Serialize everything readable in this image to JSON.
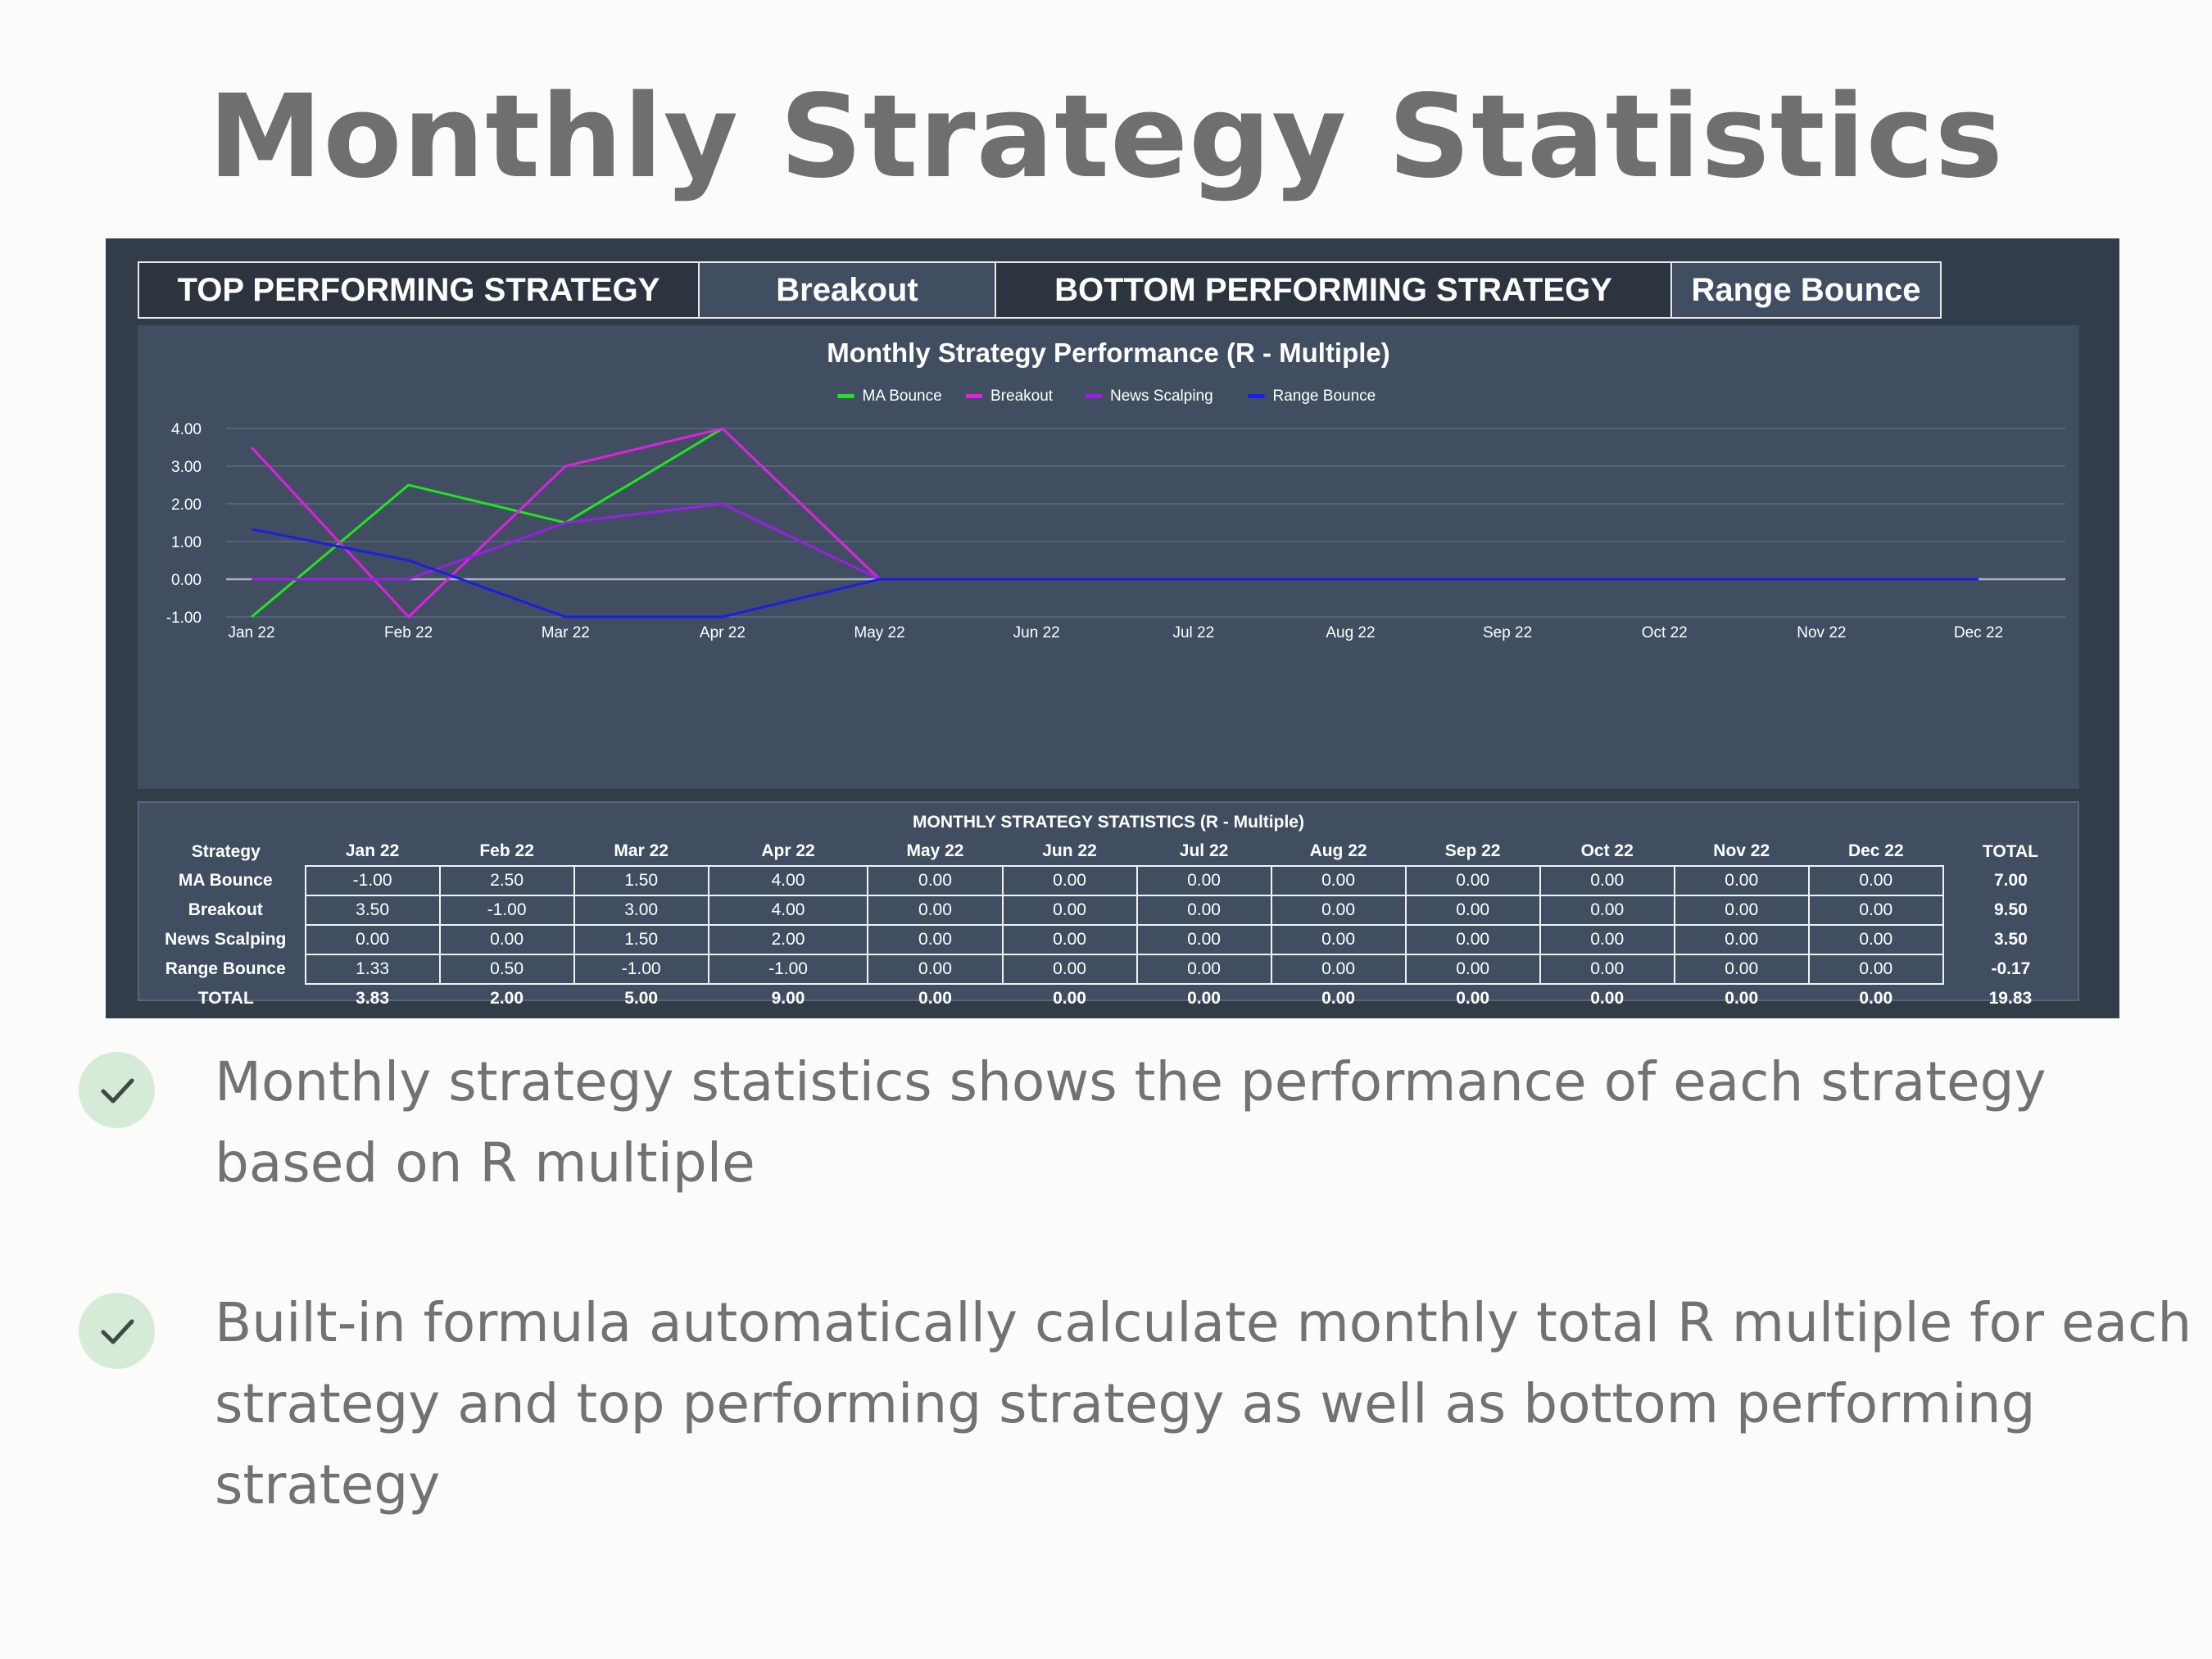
{
  "page": {
    "title": "Monthly Strategy Statistics"
  },
  "kpi": {
    "top_label": "TOP PERFORMING STRATEGY",
    "top_value": "Breakout",
    "bottom_label": "BOTTOM PERFORMING STRATEGY",
    "bottom_value": "Range Bounce"
  },
  "colors": {
    "background": "#fbfcfa",
    "panel_dark": "#333d4a",
    "panel": "#414e61",
    "title_gray": "#6f6f6f",
    "check_bg": "#d5ebd7",
    "check_mark": "#3f4a44"
  },
  "chart_data": {
    "type": "line",
    "title": "Monthly Strategy Performance (R - Multiple)",
    "xlabel": "",
    "ylabel": "",
    "categories": [
      "Jan 22",
      "Feb 22",
      "Mar 22",
      "Apr 22",
      "May 22",
      "Jun 22",
      "Jul 22",
      "Aug 22",
      "Sep 22",
      "Oct 22",
      "Nov 22",
      "Dec 22"
    ],
    "ylim": [
      -1,
      4
    ],
    "yticks": [
      "4.00",
      "3.00",
      "2.00",
      "1.00",
      "0.00",
      "-1.00"
    ],
    "grid": true,
    "legend_position": "top-center",
    "series": [
      {
        "name": "MA Bounce",
        "color": "#1ee61e",
        "values": [
          -1.0,
          2.5,
          1.5,
          4.0,
          0,
          0,
          0,
          0,
          0,
          0,
          0,
          0
        ]
      },
      {
        "name": "Breakout",
        "color": "#e21ee2",
        "values": [
          3.5,
          -1.0,
          3.0,
          4.0,
          0,
          0,
          0,
          0,
          0,
          0,
          0,
          0
        ]
      },
      {
        "name": "News Scalping",
        "color": "#9a1ee6",
        "values": [
          0.0,
          0.0,
          1.5,
          2.0,
          0,
          0,
          0,
          0,
          0,
          0,
          0,
          0
        ]
      },
      {
        "name": "Range Bounce",
        "color": "#1a1ee6",
        "values": [
          1.33,
          0.5,
          -1.0,
          -1.0,
          0,
          0,
          0,
          0,
          0,
          0,
          0,
          0
        ]
      }
    ]
  },
  "table": {
    "title": "MONTHLY STRATEGY STATISTICS (R - Multiple)",
    "headers": [
      "Strategy",
      "Jan 22",
      "Feb 22",
      "Mar 22",
      "Apr 22",
      "May 22",
      "Jun 22",
      "Jul 22",
      "Aug 22",
      "Sep 22",
      "Oct 22",
      "Nov 22",
      "Dec 22",
      "TOTAL"
    ],
    "rows": [
      [
        "MA Bounce",
        "-1.00",
        "2.50",
        "1.50",
        "4.00",
        "0.00",
        "0.00",
        "0.00",
        "0.00",
        "0.00",
        "0.00",
        "0.00",
        "0.00",
        "7.00"
      ],
      [
        "Breakout",
        "3.50",
        "-1.00",
        "3.00",
        "4.00",
        "0.00",
        "0.00",
        "0.00",
        "0.00",
        "0.00",
        "0.00",
        "0.00",
        "0.00",
        "9.50"
      ],
      [
        "News Scalping",
        "0.00",
        "0.00",
        "1.50",
        "2.00",
        "0.00",
        "0.00",
        "0.00",
        "0.00",
        "0.00",
        "0.00",
        "0.00",
        "0.00",
        "3.50"
      ],
      [
        "Range Bounce",
        "1.33",
        "0.50",
        "-1.00",
        "-1.00",
        "0.00",
        "0.00",
        "0.00",
        "0.00",
        "0.00",
        "0.00",
        "0.00",
        "0.00",
        "-0.17"
      ]
    ],
    "total_row": [
      "TOTAL",
      "3.83",
      "2.00",
      "5.00",
      "9.00",
      "0.00",
      "0.00",
      "0.00",
      "0.00",
      "0.00",
      "0.00",
      "0.00",
      "0.00",
      "19.83"
    ]
  },
  "bullets": [
    {
      "icon": "check-icon",
      "text": "Monthly strategy statistics shows the performance of each strategy based on R multiple"
    },
    {
      "icon": "check-icon",
      "text": "Built-in formula automatically calculate monthly total R multiple for each strategy and top performing strategy as well as bottom performing strategy"
    }
  ]
}
